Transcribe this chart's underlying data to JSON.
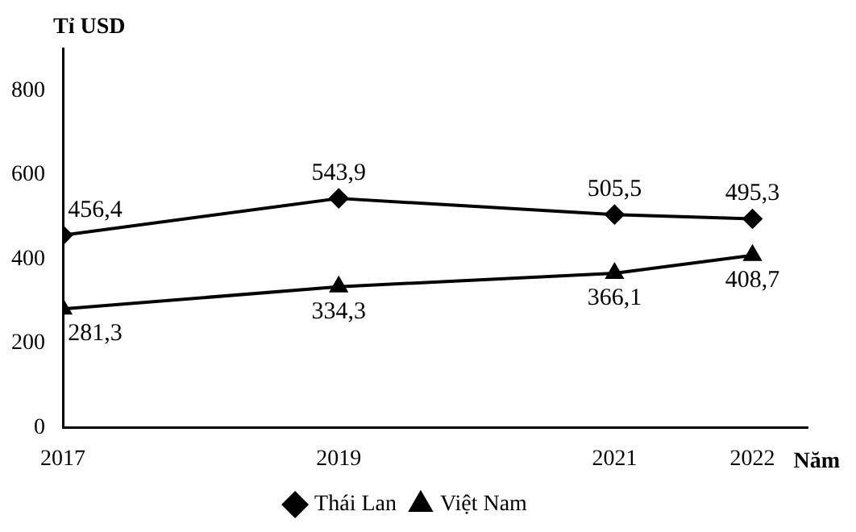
{
  "chart_data": {
    "type": "line",
    "ylabel": "Tỉ USD",
    "xlabel": "Năm",
    "x": [
      2017,
      2019,
      2021,
      2022
    ],
    "xlim": [
      2017,
      2022.4
    ],
    "xticks": [
      2017,
      2019,
      2021,
      2022
    ],
    "ylim": [
      0,
      900
    ],
    "yticks": [
      0,
      200,
      400,
      600,
      800
    ],
    "grid": false,
    "legend": "bottom",
    "line_style": "solid",
    "series": [
      {
        "name": "Thái Lan",
        "color": "#000000",
        "marker": "diamond",
        "values": [
          456.4,
          543.9,
          505.5,
          495.3
        ],
        "value_labels": [
          "456,4",
          "543,9",
          "505,5",
          "495,3"
        ]
      },
      {
        "name": "Việt Nam",
        "color": "#000000",
        "marker": "triangle",
        "values": [
          281.3,
          334.3,
          366.1,
          408.7
        ],
        "value_labels": [
          "281,3",
          "334,3",
          "366,1",
          "408,7"
        ]
      }
    ]
  }
}
